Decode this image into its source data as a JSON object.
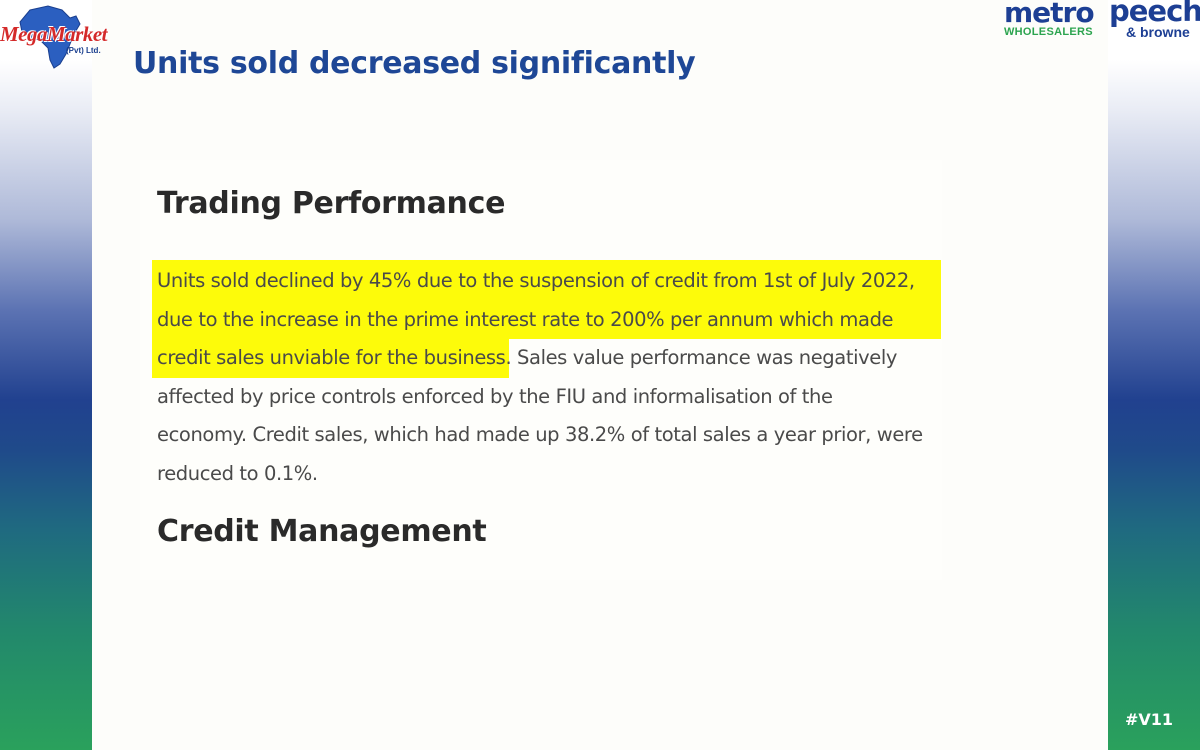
{
  "header": {
    "left_logo": {
      "name": "MegaMarket",
      "sub": "(Pvt) Ltd.",
      "icon": "africa-map-icon"
    },
    "right_logo_1": {
      "name": "metro",
      "sub": "WHOLESALERS"
    },
    "right_logo_2": {
      "name": "peech",
      "sub": "& browne"
    },
    "title": "Units sold decreased significantly"
  },
  "document": {
    "heading_1": "Trading Performance",
    "paragraph_lines": [
      "Units sold declined by 45% due to the suspension of credit from 1st of July 2022,",
      "due to the increase in the prime interest rate to 200% per annum which made",
      "credit sales unviable for the business. Sales value performance was negatively",
      "affected by price controls enforced by the FIU and informalisation of the",
      "economy. Credit sales, which had made up 38.2% of total sales a year prior, were",
      "reduced to 0.1%."
    ],
    "highlight_color": "#fdfb0a",
    "heading_2": "Credit Management"
  },
  "footer": {
    "tag": "#V11"
  },
  "colors": {
    "title": "#1e4796",
    "brand_red": "#d42a2a",
    "brand_green": "#2ca44f",
    "brand_blue": "#1d3f94"
  }
}
